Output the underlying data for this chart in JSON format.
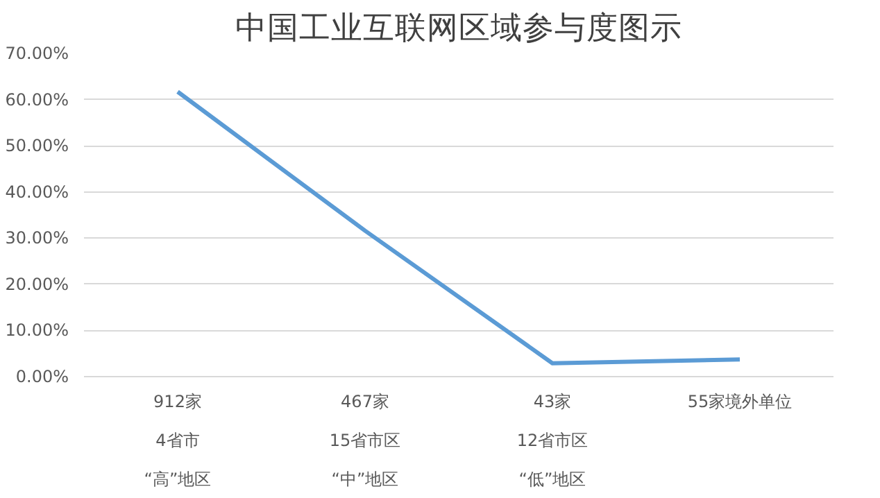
{
  "chart_data": {
    "type": "line",
    "title": "中国工业互联网区域参与度图示",
    "categories": [
      "912家\n4省市\n“高”地区",
      "467家\n15省市区\n“中”地区",
      "43家\n12省市区\n“低”地区",
      "55家境外单位"
    ],
    "series": [
      {
        "color": "#5b9bd5",
        "values": [
          61.7,
          31.6,
          2.9,
          3.7
        ]
      }
    ],
    "ylim": [
      0,
      70
    ],
    "yticks": [
      {
        "value": 0,
        "label": "0.00%"
      },
      {
        "value": 10,
        "label": "10.00%"
      },
      {
        "value": 20,
        "label": "20.00%"
      },
      {
        "value": 30,
        "label": "30.00%"
      },
      {
        "value": 40,
        "label": "40.00%"
      },
      {
        "value": 50,
        "label": "50.00%"
      },
      {
        "value": 60,
        "label": "60.00%"
      },
      {
        "value": 70,
        "label": "70.00%"
      }
    ],
    "grid": "y",
    "marker": "none",
    "line_style": "solid"
  }
}
